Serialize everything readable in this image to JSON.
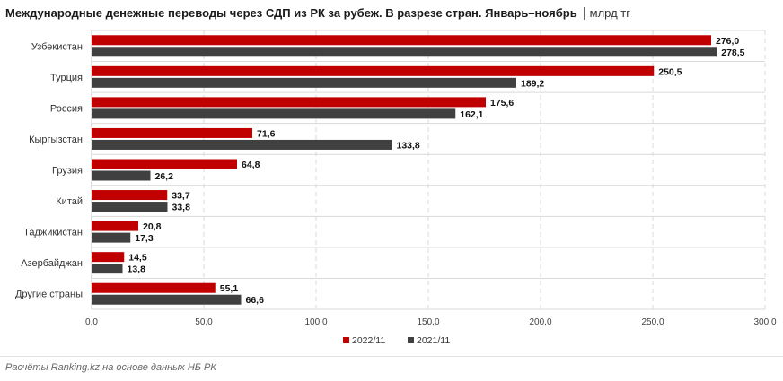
{
  "header": {
    "title": "Международные денежные переводы через СДП из РК за рубеж. В разрезе стран. Январь–ноябрь",
    "separator": "|",
    "unit": "млрд тг"
  },
  "footer": {
    "source": "Расчёты Ranking.kz на основе данных НБ РК"
  },
  "colors": {
    "series_2022": "#c00000",
    "series_2021": "#404040",
    "grid": "#d9d9d9"
  },
  "chart_data": {
    "type": "bar",
    "orientation": "horizontal",
    "categories": [
      "Узбекистан",
      "Турция",
      "Россия",
      "Кыргызстан",
      "Грузия",
      "Китай",
      "Таджикистан",
      "Азербайджан",
      "Другие страны"
    ],
    "series": [
      {
        "name": "2022/11",
        "color": "#c00000",
        "values": [
          276.0,
          250.5,
          175.6,
          71.6,
          64.8,
          33.7,
          20.8,
          14.5,
          55.1
        ],
        "labels": [
          "276,0",
          "250,5",
          "175,6",
          "71,6",
          "64,8",
          "33,7",
          "20,8",
          "14,5",
          "55,1"
        ]
      },
      {
        "name": "2021/11",
        "color": "#404040",
        "values": [
          278.5,
          189.2,
          162.1,
          133.8,
          26.2,
          33.8,
          17.3,
          13.8,
          66.6
        ],
        "labels": [
          "278,5",
          "189,2",
          "162,1",
          "133,8",
          "26,2",
          "33,8",
          "17,3",
          "13,8",
          "66,6"
        ]
      }
    ],
    "xlim": [
      0,
      300
    ],
    "xticks": [
      0,
      50,
      100,
      150,
      200,
      250,
      300
    ],
    "xtick_labels": [
      "0,0",
      "50,0",
      "100,0",
      "150,0",
      "200,0",
      "250,0",
      "300,0"
    ],
    "grid": true,
    "legend_position": "bottom-center"
  }
}
